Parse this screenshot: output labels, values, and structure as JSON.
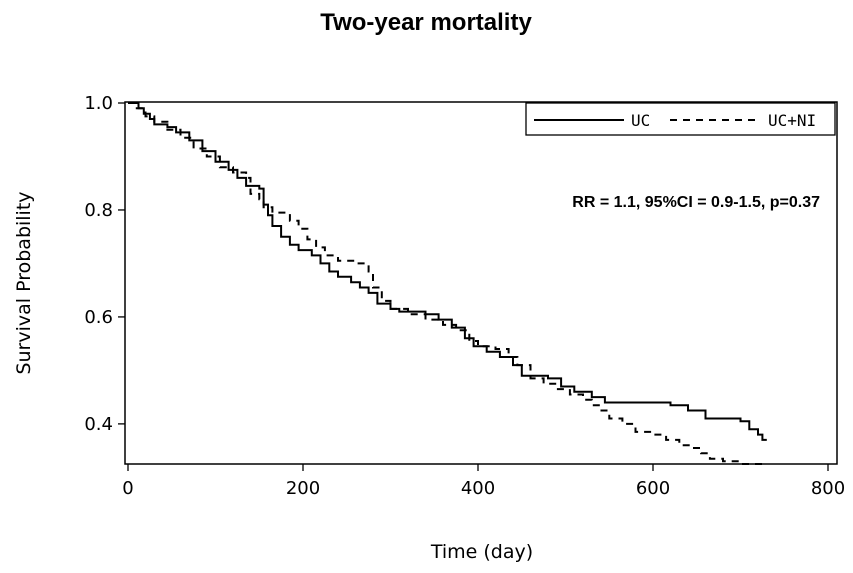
{
  "chart_data": {
    "type": "line",
    "title": "Two-year mortality",
    "xlabel": "Time (day)",
    "ylabel": "Survival Probability",
    "xlim": [
      0,
      800
    ],
    "ylim": [
      0.325,
      1.0
    ],
    "xticks": [
      0,
      200,
      400,
      600,
      800
    ],
    "xtick_labels": [
      "0",
      "200",
      "400",
      "600",
      "800"
    ],
    "yticks": [
      0.4,
      0.6,
      0.8,
      1.0
    ],
    "ytick_labels": [
      "0.4",
      "0.6",
      "0.8",
      "1.0"
    ],
    "grid": false,
    "legend_position": "top-right",
    "annotation": "RR = 1.1, 95%CI = 0.9-1.5, p=0.37",
    "series": [
      {
        "name": "UC",
        "line_style": "solid",
        "color": "#000000",
        "points": [
          [
            0,
            1.0
          ],
          [
            8,
            1.0
          ],
          [
            12,
            0.99
          ],
          [
            18,
            0.98
          ],
          [
            25,
            0.97
          ],
          [
            30,
            0.96
          ],
          [
            45,
            0.955
          ],
          [
            55,
            0.945
          ],
          [
            70,
            0.93
          ],
          [
            85,
            0.91
          ],
          [
            100,
            0.89
          ],
          [
            115,
            0.875
          ],
          [
            125,
            0.86
          ],
          [
            135,
            0.845
          ],
          [
            150,
            0.84
          ],
          [
            155,
            0.81
          ],
          [
            160,
            0.79
          ],
          [
            165,
            0.77
          ],
          [
            175,
            0.75
          ],
          [
            185,
            0.735
          ],
          [
            195,
            0.725
          ],
          [
            210,
            0.715
          ],
          [
            220,
            0.7
          ],
          [
            230,
            0.685
          ],
          [
            240,
            0.675
          ],
          [
            255,
            0.665
          ],
          [
            265,
            0.655
          ],
          [
            275,
            0.645
          ],
          [
            285,
            0.625
          ],
          [
            300,
            0.615
          ],
          [
            310,
            0.61
          ],
          [
            340,
            0.605
          ],
          [
            355,
            0.595
          ],
          [
            370,
            0.58
          ],
          [
            385,
            0.56
          ],
          [
            395,
            0.545
          ],
          [
            410,
            0.535
          ],
          [
            425,
            0.525
          ],
          [
            440,
            0.51
          ],
          [
            450,
            0.49
          ],
          [
            480,
            0.485
          ],
          [
            495,
            0.47
          ],
          [
            510,
            0.46
          ],
          [
            530,
            0.45
          ],
          [
            545,
            0.44
          ],
          [
            620,
            0.435
          ],
          [
            640,
            0.425
          ],
          [
            660,
            0.41
          ],
          [
            700,
            0.405
          ],
          [
            710,
            0.39
          ],
          [
            720,
            0.38
          ],
          [
            725,
            0.37
          ],
          [
            730,
            0.37
          ]
        ]
      },
      {
        "name": "UC+NI",
        "line_style": "dashed",
        "color": "#000000",
        "points": [
          [
            0,
            1.0
          ],
          [
            10,
            0.99
          ],
          [
            20,
            0.975
          ],
          [
            30,
            0.965
          ],
          [
            45,
            0.95
          ],
          [
            60,
            0.935
          ],
          [
            75,
            0.915
          ],
          [
            90,
            0.9
          ],
          [
            105,
            0.88
          ],
          [
            120,
            0.87
          ],
          [
            135,
            0.86
          ],
          [
            140,
            0.83
          ],
          [
            150,
            0.82
          ],
          [
            155,
            0.805
          ],
          [
            165,
            0.795
          ],
          [
            185,
            0.78
          ],
          [
            195,
            0.765
          ],
          [
            205,
            0.745
          ],
          [
            215,
            0.73
          ],
          [
            225,
            0.715
          ],
          [
            240,
            0.705
          ],
          [
            260,
            0.7
          ],
          [
            275,
            0.685
          ],
          [
            280,
            0.655
          ],
          [
            290,
            0.63
          ],
          [
            300,
            0.615
          ],
          [
            320,
            0.605
          ],
          [
            340,
            0.595
          ],
          [
            360,
            0.585
          ],
          [
            375,
            0.575
          ],
          [
            390,
            0.555
          ],
          [
            400,
            0.545
          ],
          [
            420,
            0.54
          ],
          [
            435,
            0.525
          ],
          [
            445,
            0.51
          ],
          [
            460,
            0.485
          ],
          [
            475,
            0.475
          ],
          [
            490,
            0.465
          ],
          [
            505,
            0.455
          ],
          [
            520,
            0.445
          ],
          [
            530,
            0.435
          ],
          [
            540,
            0.425
          ],
          [
            550,
            0.41
          ],
          [
            565,
            0.4
          ],
          [
            580,
            0.385
          ],
          [
            600,
            0.38
          ],
          [
            615,
            0.37
          ],
          [
            630,
            0.36
          ],
          [
            645,
            0.355
          ],
          [
            655,
            0.345
          ],
          [
            665,
            0.335
          ],
          [
            680,
            0.33
          ],
          [
            700,
            0.325
          ],
          [
            730,
            0.325
          ]
        ]
      }
    ]
  }
}
